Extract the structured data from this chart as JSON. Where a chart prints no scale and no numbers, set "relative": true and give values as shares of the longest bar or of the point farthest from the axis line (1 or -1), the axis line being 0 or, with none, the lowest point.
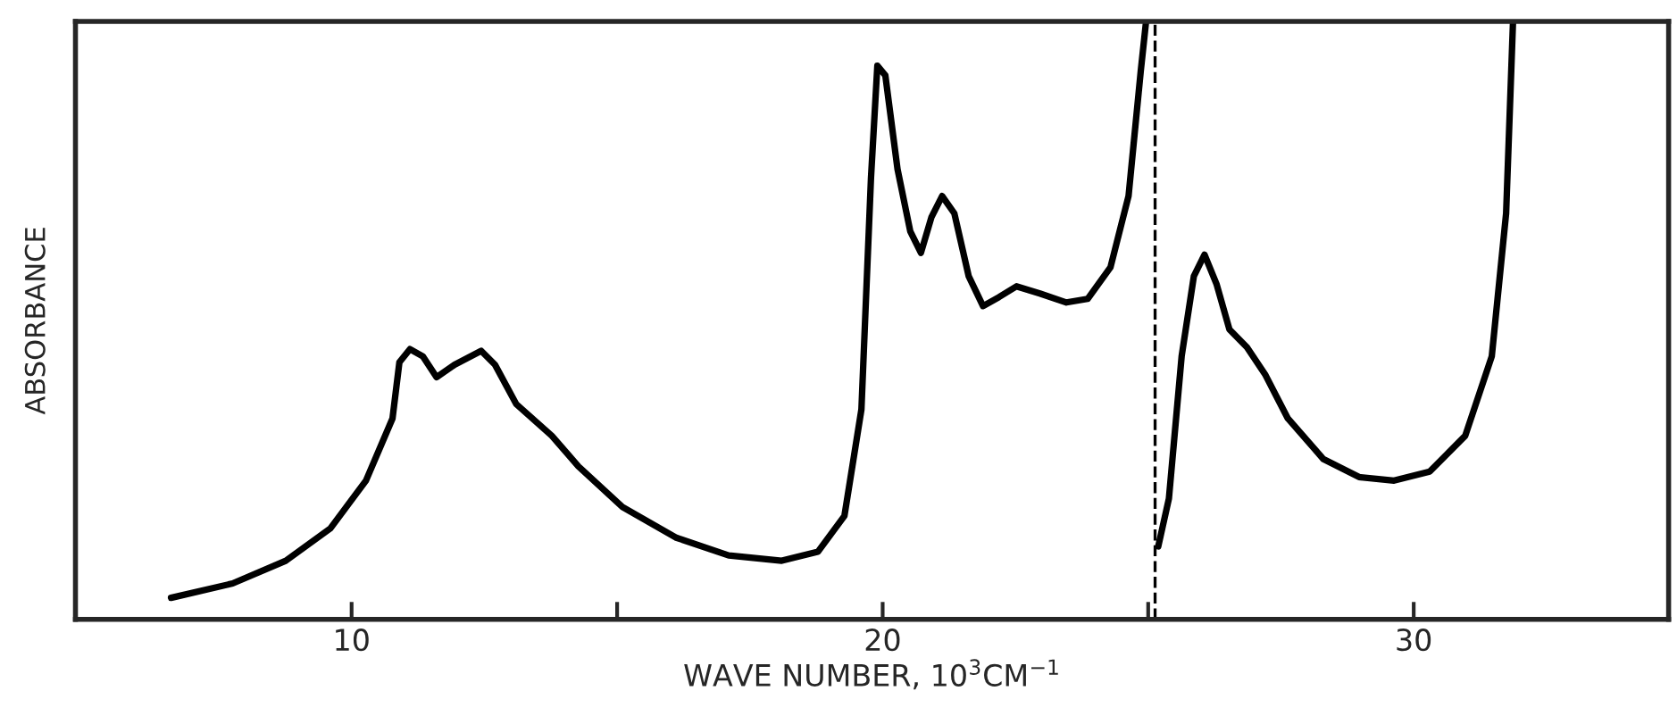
{
  "chart_data": {
    "type": "line",
    "relative": true,
    "xlabel": "WAVE NUMBER, 10$^{3}$CM$^{−1}$",
    "ylabel": "ABSORBANCE",
    "xlim": [
      4.8,
      34.8
    ],
    "xticks": [
      10,
      {
        "value": 15,
        "label": null
      },
      20,
      {
        "value": 25,
        "label": null
      },
      30
    ],
    "grid": false,
    "legend": false,
    "marker": "none",
    "line_style": "solid",
    "ref_lines": [
      {
        "axis": "x",
        "value": 25.13,
        "label": null,
        "color": "#000000",
        "line_style": "dashed"
      }
    ],
    "series": [
      {
        "color": "#000000",
        "x": [
          6.6,
          7.76,
          8.76,
          9.6,
          10.27,
          10.77,
          10.9,
          11.1,
          11.34,
          11.6,
          11.94,
          12.44,
          12.7,
          13.1,
          13.77,
          14.27,
          15.1,
          16.1,
          17.1,
          18.1,
          18.78,
          19.28,
          19.6,
          19.78,
          19.9,
          20.05,
          20.28,
          20.52,
          20.72,
          20.92,
          21.12,
          21.35,
          21.62,
          21.89,
          22.19,
          22.52,
          22.96,
          23.46,
          23.86,
          24.29,
          24.63,
          24.86,
          24.96,
          25.1,
          25.19,
          25.39,
          25.63,
          25.86,
          26.06,
          26.29,
          26.53,
          26.86,
          27.2,
          27.63,
          28.3,
          28.97,
          29.63,
          30.3,
          30.97,
          31.47,
          31.74,
          31.87
        ],
        "values": [
          0.036,
          0.06,
          0.098,
          0.152,
          0.232,
          0.336,
          0.43,
          0.452,
          0.44,
          0.405,
          0.426,
          0.449,
          0.426,
          0.36,
          0.307,
          0.256,
          0.188,
          0.137,
          0.107,
          0.098,
          0.113,
          0.173,
          0.351,
          0.738,
          0.926,
          0.91,
          0.753,
          0.649,
          0.613,
          0.673,
          0.708,
          0.679,
          0.574,
          0.524,
          0.539,
          0.557,
          0.545,
          0.53,
          0.536,
          0.589,
          0.708,
          0.917,
          1.0,
          null,
          0.122,
          0.202,
          0.44,
          0.574,
          0.61,
          0.56,
          0.485,
          0.455,
          0.41,
          0.336,
          0.268,
          0.238,
          0.232,
          0.247,
          0.307,
          0.44,
          0.679,
          1.0
        ]
      }
    ]
  }
}
